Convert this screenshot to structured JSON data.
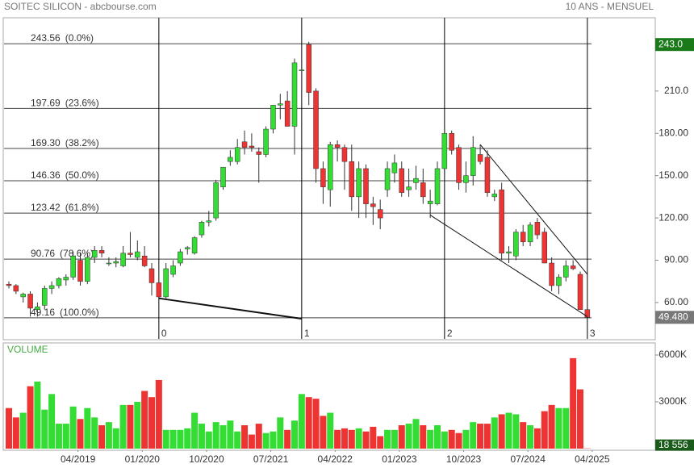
{
  "chart_data": {
    "type": "candlestick",
    "title": "SOITEC SILICON - abcbourse.com",
    "subtitle": "10 ANS - MENSUEL",
    "volume_label": "VOLUME",
    "x": [
      "07/2018",
      "08/2018",
      "09/2018",
      "10/2018",
      "11/2018",
      "12/2018",
      "01/2019",
      "02/2019",
      "03/2019",
      "04/2019",
      "05/2019",
      "06/2019",
      "07/2019",
      "08/2019",
      "09/2019",
      "10/2019",
      "11/2019",
      "12/2019",
      "01/2020",
      "02/2020",
      "03/2020",
      "04/2020",
      "05/2020",
      "06/2020",
      "07/2020",
      "08/2020",
      "09/2020",
      "10/2020",
      "11/2020",
      "12/2020",
      "01/2021",
      "02/2021",
      "03/2021",
      "04/2021",
      "05/2021",
      "06/2021",
      "07/2021",
      "08/2021",
      "09/2021",
      "10/2021",
      "11/2021",
      "12/2021",
      "01/2022",
      "02/2022",
      "03/2022",
      "04/2022",
      "05/2022",
      "06/2022",
      "07/2022",
      "08/2022",
      "09/2022",
      "10/2022",
      "11/2022",
      "12/2022",
      "01/2023",
      "02/2023",
      "03/2023",
      "04/2023",
      "05/2023",
      "06/2023",
      "07/2023",
      "08/2023",
      "09/2023",
      "10/2023",
      "11/2023",
      "12/2023",
      "01/2024",
      "02/2024",
      "03/2024",
      "04/2024",
      "05/2024",
      "06/2024",
      "07/2024",
      "08/2024",
      "09/2024",
      "10/2024",
      "11/2024",
      "12/2024",
      "01/2025",
      "02/2025",
      "03/2025",
      "04/2025"
    ],
    "open": [
      73,
      72,
      64,
      66,
      55,
      58,
      70,
      72,
      76,
      78,
      90,
      75,
      92,
      97,
      88,
      88,
      86,
      95,
      92,
      93,
      84,
      74,
      64,
      80,
      88,
      98,
      95,
      108,
      117,
      120,
      142,
      160,
      160,
      174,
      171,
      167,
      165,
      183,
      200,
      203,
      185,
      225,
      243,
      210,
      155,
      140,
      172,
      170,
      160,
      135,
      155,
      130,
      126,
      140,
      152,
      155,
      140,
      145,
      145,
      130,
      130,
      155,
      180,
      170,
      145,
      150,
      165,
      163,
      135,
      140,
      95,
      93,
      110,
      103,
      117,
      110,
      88,
      72,
      78,
      86,
      80,
      55
    ],
    "high": [
      75,
      73,
      67,
      68,
      60,
      72,
      75,
      78,
      80,
      96,
      95,
      95,
      100,
      100,
      92,
      92,
      100,
      110,
      104,
      100,
      88,
      76,
      88,
      90,
      98,
      100,
      107,
      118,
      125,
      147,
      156,
      168,
      176,
      182,
      180,
      170,
      185,
      200,
      208,
      210,
      233,
      232,
      245,
      212,
      160,
      174,
      175,
      172,
      172,
      160,
      158,
      135,
      133,
      160,
      165,
      160,
      155,
      157,
      155,
      140,
      160,
      185,
      182,
      172,
      160,
      178,
      172,
      168,
      140,
      145,
      100,
      112,
      115,
      117,
      120,
      113,
      92,
      80,
      90,
      90,
      82,
      57
    ],
    "low": [
      70,
      66,
      60,
      50,
      50,
      55,
      66,
      70,
      72,
      76,
      72,
      73,
      88,
      92,
      86,
      85,
      85,
      92,
      90,
      85,
      65,
      62,
      63,
      78,
      86,
      94,
      94,
      106,
      114,
      118,
      140,
      157,
      158,
      165,
      167,
      145,
      163,
      180,
      190,
      185,
      165,
      210,
      200,
      145,
      130,
      128,
      160,
      140,
      125,
      120,
      120,
      115,
      112,
      135,
      145,
      135,
      135,
      140,
      130,
      120,
      129,
      150,
      165,
      140,
      138,
      143,
      158,
      135,
      132,
      90,
      88,
      90,
      100,
      100,
      105,
      88,
      68,
      66,
      75,
      83,
      55,
      48
    ],
    "close": [
      72,
      68,
      66,
      56,
      57,
      70,
      72,
      77,
      78,
      93,
      75,
      92,
      97,
      95,
      88,
      89,
      95,
      94,
      96,
      86,
      74,
      64,
      84,
      86,
      96,
      99,
      106,
      117,
      118,
      145,
      156,
      163,
      170,
      170,
      170,
      165,
      183,
      200,
      201,
      185,
      230,
      225,
      209,
      155,
      142,
      172,
      170,
      160,
      135,
      155,
      130,
      128,
      120,
      155,
      159,
      138,
      142,
      148,
      135,
      132,
      155,
      180,
      168,
      145,
      150,
      170,
      160,
      138,
      137,
      95,
      96,
      110,
      103,
      115,
      108,
      88,
      72,
      78,
      86,
      84,
      55,
      49.48
    ],
    "volume": [
      2600,
      2000,
      2300,
      4000,
      4300,
      2500,
      3500,
      1600,
      1600,
      2700,
      1900,
      2600,
      2000,
      1500,
      1700,
      1300,
      2800,
      2800,
      3000,
      3700,
      3300,
      4400,
      1200,
      1200,
      1200,
      1300,
      2300,
      1600,
      1100,
      1700,
      1500,
      1800,
      1100,
      1500,
      900,
      1600,
      1000,
      1100,
      2000,
      1200,
      1800,
      3500,
      3300,
      3200,
      2100,
      2300,
      1200,
      1300,
      1200,
      1300,
      1100,
      1400,
      800,
      1200,
      1200,
      1500,
      1600,
      1900,
      1500,
      1200,
      1500,
      1100,
      1200,
      1000,
      1200,
      1700,
      1600,
      1600,
      2000,
      2200,
      2300,
      2200,
      1700,
      1500,
      1300,
      2400,
      2800,
      2600,
      2600,
      5800,
      3800,
      18.556
    ],
    "up_color": "#33dd33",
    "down_color": "#ee3333",
    "ylim": [
      34.2,
      262
    ],
    "yticks": [
      {
        "value": 60,
        "label": "60.00"
      },
      {
        "value": 90,
        "label": "90.00"
      },
      {
        "value": 120,
        "label": "120.00"
      },
      {
        "value": 150,
        "label": "150.00"
      },
      {
        "value": 180,
        "label": "180.00"
      },
      {
        "value": 210,
        "label": "210.0"
      }
    ],
    "max_tag": {
      "value": 243,
      "label": "243.0"
    },
    "last_tag": {
      "value": 49.48,
      "label": "49.480"
    },
    "volume_ylim": [
      0,
      6776
    ],
    "volume_yticks": [
      {
        "value": 3000,
        "label": "3000K"
      },
      {
        "value": 6000,
        "label": "6000K"
      }
    ],
    "last_volume_tag": {
      "value": 18.556,
      "label": "18 556"
    },
    "xticks": [
      "04/2019",
      "01/2020",
      "10/2020",
      "07/2021",
      "04/2022",
      "01/2023",
      "10/2023",
      "07/2024",
      "04/2025"
    ],
    "fib_levels": [
      {
        "value": 243.56,
        "label": "243.56",
        "pct": "(0.0%)"
      },
      {
        "value": 197.69,
        "label": "197.69",
        "pct": "(23.6%)"
      },
      {
        "value": 169.3,
        "label": "169.30",
        "pct": "(38.2%)"
      },
      {
        "value": 146.36,
        "label": "146.36",
        "pct": "(50.0%)"
      },
      {
        "value": 123.42,
        "label": "123.42",
        "pct": "(61.8%)"
      },
      {
        "value": 90.76,
        "label": "90.76",
        "pct": "(78.6%)"
      },
      {
        "value": 49.16,
        "label": "49.16",
        "pct": "(100.0%)"
      }
    ],
    "time_markers": [
      {
        "x": "04/2020",
        "label": "0"
      },
      {
        "x": "12/2021",
        "label": "1"
      },
      {
        "x": "08/2023",
        "label": "2"
      },
      {
        "x": "04/2025",
        "label": "3"
      }
    ],
    "trendlines": [
      {
        "start": [
          "04/2020",
          63
        ],
        "end": [
          "12/2021",
          48.5
        ]
      },
      {
        "start": [
          "06/2023",
          122
        ],
        "end": [
          "04/2025",
          50
        ]
      },
      {
        "start": [
          "01/2024",
          172
        ],
        "end": [
          "04/2025",
          80
        ]
      }
    ]
  }
}
